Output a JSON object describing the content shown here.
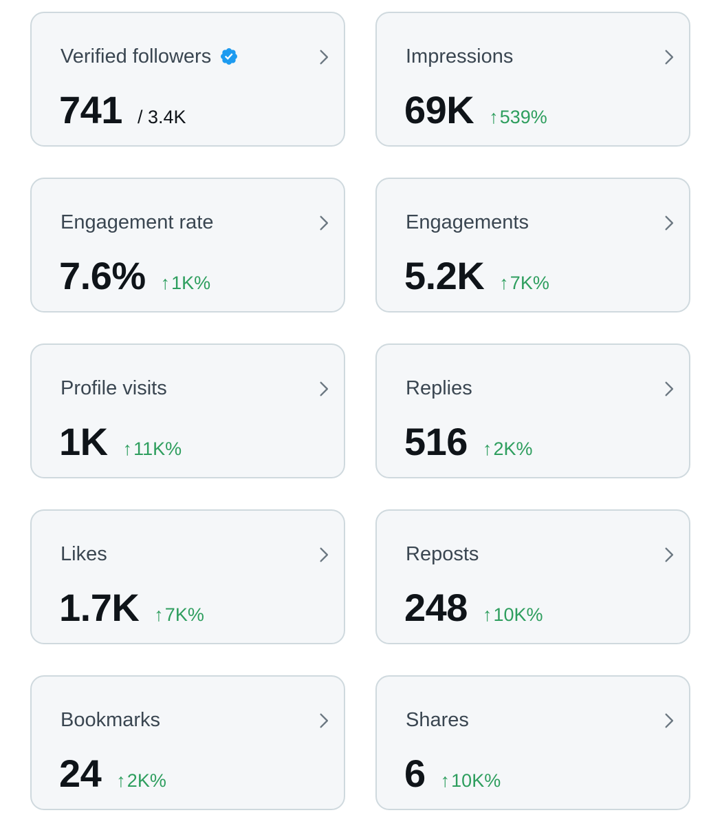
{
  "colors": {
    "card_bg": "#f5f7f9",
    "card_border": "#cfd9de",
    "title": "#3a4651",
    "value": "#0f1419",
    "positive": "#2e9e5e",
    "verified": "#1d9bf0"
  },
  "cards": [
    {
      "title": "Verified followers",
      "value": "741",
      "sub": "/ 3.4K",
      "icon": "verified-badge-icon"
    },
    {
      "title": "Impressions",
      "value": "69K",
      "change_arrow": "↑",
      "change": "539%"
    },
    {
      "title": "Engagement rate",
      "value": "7.6%",
      "change_arrow": "↑",
      "change": "1K%"
    },
    {
      "title": "Engagements",
      "value": "5.2K",
      "change_arrow": "↑",
      "change": "7K%"
    },
    {
      "title": "Profile visits",
      "value": "1K",
      "change_arrow": "↑",
      "change": "11K%"
    },
    {
      "title": "Replies",
      "value": "516",
      "change_arrow": "↑",
      "change": "2K%"
    },
    {
      "title": "Likes",
      "value": "1.7K",
      "change_arrow": "↑",
      "change": "7K%"
    },
    {
      "title": "Reposts",
      "value": "248",
      "change_arrow": "↑",
      "change": "10K%"
    },
    {
      "title": "Bookmarks",
      "value": "24",
      "change_arrow": "↑",
      "change": "2K%"
    },
    {
      "title": "Shares",
      "value": "6",
      "change_arrow": "↑",
      "change": "10K%"
    }
  ]
}
